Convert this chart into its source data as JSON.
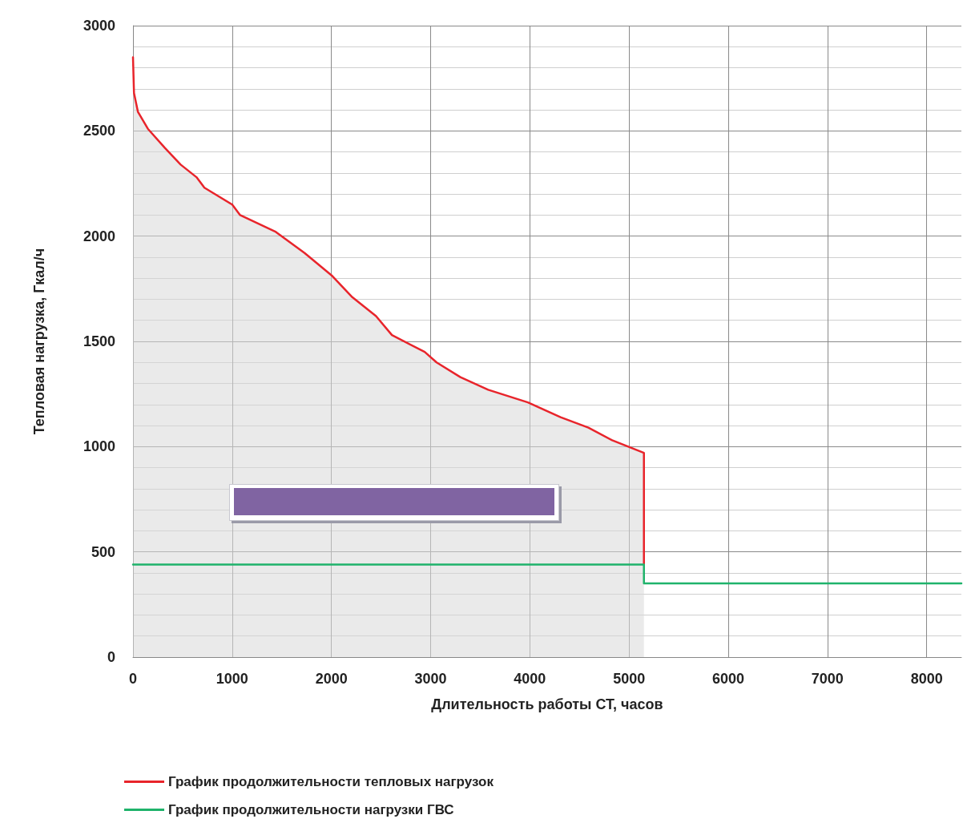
{
  "chart_data": {
    "type": "line",
    "xlabel": "Длительность работы СТ, часов",
    "ylabel": "Тепловая нагрузка, Гкал/ч",
    "xlim": [
      0,
      8350
    ],
    "xticks": [
      0,
      1000,
      2000,
      3000,
      4000,
      5000,
      6000,
      7000,
      8000
    ],
    "ylim": [
      0,
      3000
    ],
    "yticks": [
      0,
      500,
      1000,
      1500,
      2000,
      2500,
      3000
    ],
    "grid": true,
    "legend": "bottom",
    "series": [
      {
        "name": "График продолжительности тепловых нагрузок",
        "color": "#e8242b",
        "type": "area",
        "x": [
          0,
          10,
          50,
          150,
          320,
          480,
          640,
          720,
          1000,
          1080,
          1440,
          1730,
          2010,
          2210,
          2450,
          2610,
          2940,
          3060,
          3300,
          3580,
          3980,
          4310,
          4590,
          4830,
          5150,
          5150
        ],
        "values": [
          2850,
          2680,
          2590,
          2510,
          2420,
          2340,
          2280,
          2230,
          2150,
          2100,
          2020,
          1920,
          1810,
          1710,
          1620,
          1530,
          1450,
          1400,
          1330,
          1270,
          1210,
          1140,
          1090,
          1030,
          970,
          440
        ]
      },
      {
        "name": "График продолжительности нагрузки ГВС",
        "color": "#1fb36b",
        "x": [
          0,
          5150,
          5150,
          8350
        ],
        "values": [
          440,
          440,
          350,
          350
        ]
      }
    ]
  }
}
